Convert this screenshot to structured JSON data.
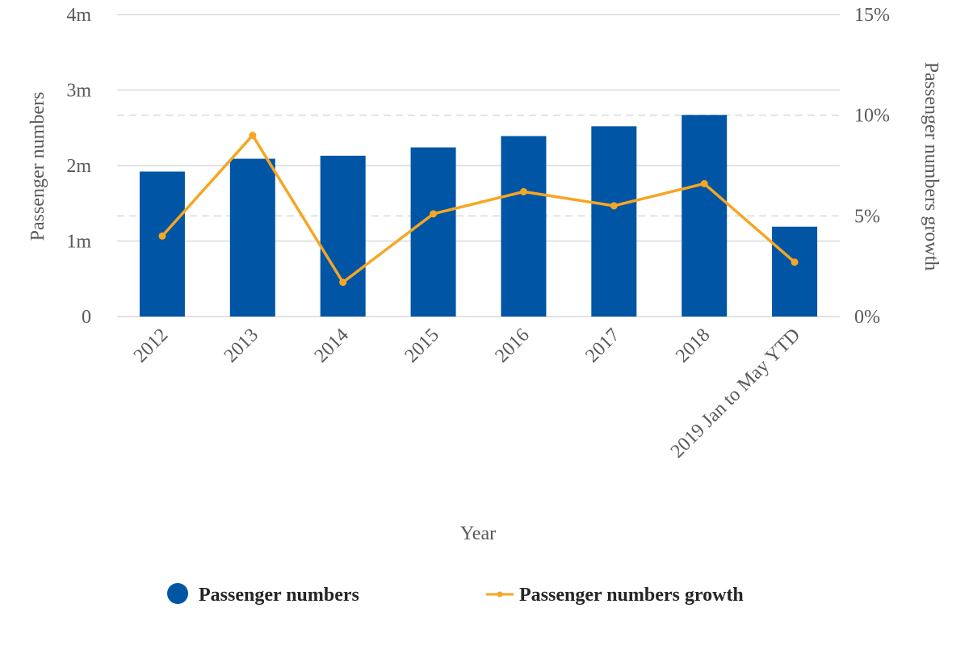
{
  "colors": {
    "bar": "#0055A5",
    "line": "#F5A623",
    "grid": "#D9D9D9",
    "text": "#595959"
  },
  "chart_data": {
    "type": "bar",
    "categories": [
      "2012",
      "2013",
      "2014",
      "2015",
      "2016",
      "2017",
      "2018",
      "2019 Jan to May YTD"
    ],
    "xlabel": "Year",
    "ylabel": "Passenger numbers",
    "y2label": "Passenger numbers growth",
    "ylim": [
      0,
      4000000
    ],
    "y2lim": [
      0,
      15
    ],
    "yticks": [
      {
        "value": 0,
        "label": "0"
      },
      {
        "value": 1000000,
        "label": "1m"
      },
      {
        "value": 2000000,
        "label": "2m"
      },
      {
        "value": 3000000,
        "label": "3m"
      },
      {
        "value": 4000000,
        "label": "4m"
      }
    ],
    "y2ticks": [
      {
        "value": 0,
        "label": "0%"
      },
      {
        "value": 5,
        "label": "5%"
      },
      {
        "value": 10,
        "label": "10%"
      },
      {
        "value": 15,
        "label": "15%"
      }
    ],
    "grid": true,
    "legend_position": "bottom",
    "series": [
      {
        "name": "Passenger numbers",
        "type": "bar",
        "axis": "left",
        "values": [
          1920000,
          2090000,
          2130000,
          2240000,
          2390000,
          2520000,
          2670000,
          1190000
        ]
      },
      {
        "name": "Passenger numbers growth",
        "type": "line",
        "axis": "right",
        "values": [
          4.0,
          9.0,
          1.7,
          5.1,
          6.2,
          5.5,
          6.6,
          2.7
        ]
      }
    ]
  }
}
